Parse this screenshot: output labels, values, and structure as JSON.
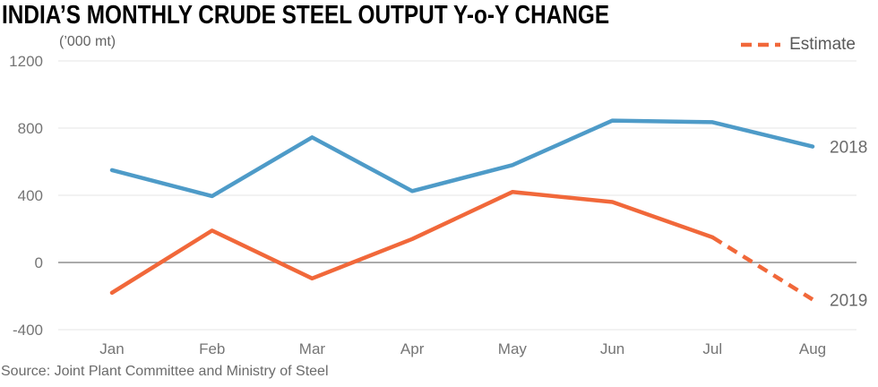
{
  "header": {
    "title": "INDIA’S MONTHLY CRUDE STEEL OUTPUT Y-o-Y CHANGE",
    "unit_label": "(’000 mt)"
  },
  "legend": {
    "estimate_label": "Estimate"
  },
  "footer": {
    "source": "Source: Joint Plant Committee and Ministry of Steel"
  },
  "chart_data": {
    "type": "line",
    "title": "INDIA’S MONTHLY CRUDE STEEL OUTPUT Y-o-Y CHANGE",
    "unit": "’000 mt",
    "categories": [
      "Jan",
      "Feb",
      "Mar",
      "Apr",
      "May",
      "Jun",
      "Jul",
      "Aug"
    ],
    "series": [
      {
        "name": "2018",
        "color": "#4E9BC8",
        "values": [
          550,
          395,
          745,
          425,
          580,
          845,
          835,
          690
        ]
      },
      {
        "name": "2019",
        "color": "#F1683A",
        "values": [
          -180,
          190,
          -95,
          140,
          420,
          360,
          150,
          -220
        ],
        "dashed_from_index": 6
      }
    ],
    "ylim": [
      -400,
      1200
    ],
    "yticks": [
      1200,
      800,
      400,
      0,
      -400
    ],
    "grid": "horizontal",
    "legend_position": "top-right",
    "colors": {
      "grid": "#e4e4e4",
      "zero_line": "#8f8f8f",
      "axis_text": "#757575",
      "series_label": "#6b6b6b"
    }
  }
}
